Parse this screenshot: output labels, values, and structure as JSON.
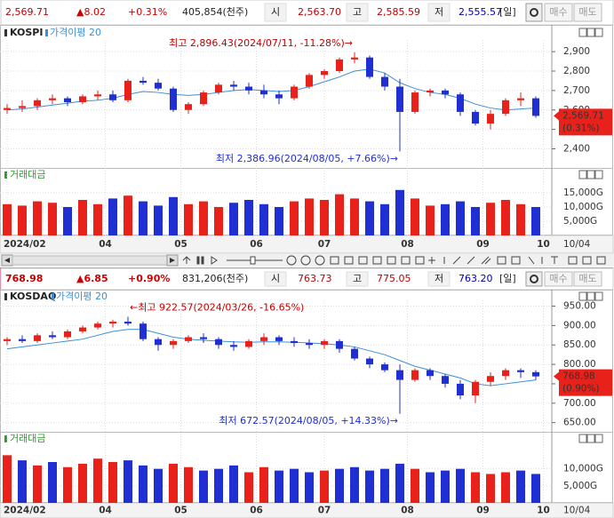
{
  "quote_bars": [
    {
      "last": "2,569.71",
      "change": "▲8.02",
      "pct": "+0.31%",
      "volume": "405,854(천주)",
      "open_label": "시",
      "open": "2,563.70",
      "high_label": "고",
      "high": "2,585.59",
      "low_label": "저",
      "low": "2,555.57",
      "period": "[일]",
      "buy": "매수",
      "sell": "매도"
    },
    {
      "last": "768.98",
      "change": "▲6.85",
      "pct": "+0.90%",
      "volume": "831,206(천주)",
      "open_label": "시",
      "open": "763.73",
      "high_label": "고",
      "high": "775.05",
      "low_label": "저",
      "low": "763.20",
      "period": "[일]",
      "buy": "매수",
      "sell": "매도"
    }
  ],
  "chart_data": [
    {
      "type": "candlestick",
      "title": "KOSPI",
      "up_color": "#e8221b",
      "down_color": "#1f2fd1",
      "ma": {
        "name": "가격이평 20",
        "color": "#3b8fd6",
        "values": [
          2600,
          2605,
          2615,
          2625,
          2635,
          2645,
          2650,
          2660,
          2680,
          2695,
          2690,
          2680,
          2675,
          2680,
          2690,
          2700,
          2705,
          2700,
          2695,
          2700,
          2720,
          2745,
          2770,
          2800,
          2810,
          2790,
          2740,
          2710,
          2690,
          2680,
          2660,
          2630,
          2610,
          2600,
          2605,
          2610
        ]
      },
      "ohlc": [
        [
          2600,
          2630,
          2580,
          2610
        ],
        [
          2610,
          2650,
          2590,
          2620
        ],
        [
          2620,
          2660,
          2600,
          2650
        ],
        [
          2650,
          2680,
          2630,
          2660
        ],
        [
          2660,
          2670,
          2620,
          2640
        ],
        [
          2640,
          2680,
          2630,
          2670
        ],
        [
          2670,
          2700,
          2650,
          2680
        ],
        [
          2680,
          2700,
          2640,
          2650
        ],
        [
          2650,
          2760,
          2640,
          2750
        ],
        [
          2750,
          2770,
          2730,
          2740
        ],
        [
          2740,
          2760,
          2700,
          2710
        ],
        [
          2710,
          2720,
          2590,
          2600
        ],
        [
          2600,
          2640,
          2580,
          2630
        ],
        [
          2630,
          2700,
          2620,
          2690
        ],
        [
          2690,
          2740,
          2680,
          2730
        ],
        [
          2730,
          2750,
          2700,
          2720
        ],
        [
          2720,
          2740,
          2680,
          2700
        ],
        [
          2700,
          2730,
          2660,
          2680
        ],
        [
          2680,
          2700,
          2630,
          2660
        ],
        [
          2660,
          2730,
          2650,
          2720
        ],
        [
          2720,
          2790,
          2710,
          2780
        ],
        [
          2780,
          2810,
          2760,
          2800
        ],
        [
          2800,
          2870,
          2790,
          2860
        ],
        [
          2860,
          2896.43,
          2840,
          2870
        ],
        [
          2870,
          2880,
          2760,
          2770
        ],
        [
          2770,
          2790,
          2700,
          2720
        ],
        [
          2720,
          2760,
          2386.96,
          2590
        ],
        [
          2590,
          2700,
          2580,
          2690
        ],
        [
          2690,
          2710,
          2670,
          2700
        ],
        [
          2700,
          2710,
          2660,
          2680
        ],
        [
          2680,
          2690,
          2570,
          2590
        ],
        [
          2590,
          2600,
          2520,
          2530
        ],
        [
          2530,
          2600,
          2500,
          2580
        ],
        [
          2580,
          2660,
          2570,
          2650
        ],
        [
          2650,
          2690,
          2620,
          2660
        ],
        [
          2660,
          2670,
          2560,
          2569.71
        ]
      ],
      "ylim": [
        2320,
        2960
      ],
      "yticks": [
        {
          "value": 2400,
          "label": "2,400"
        },
        {
          "value": 2500,
          "label": "2,500"
        },
        {
          "value": 2600,
          "label": "2,600"
        },
        {
          "value": 2700,
          "label": "2,700"
        },
        {
          "value": 2800,
          "label": "2,800"
        },
        {
          "value": 2900,
          "label": "2,900"
        }
      ],
      "high_note": "최고 2,896.43(2024/07/11, -11.28%)→",
      "low_note": "최저 2,386.96(2024/08/05, +7.66%)→",
      "last_price": "2,569.71",
      "last_change": "(0.31%)",
      "volume": {
        "title": "거래대금",
        "values": [
          11000,
          10500,
          12000,
          11500,
          10000,
          12500,
          11000,
          13000,
          14000,
          12000,
          10500,
          13500,
          11000,
          12000,
          10000,
          11500,
          12500,
          11000,
          10000,
          12000,
          13000,
          12500,
          14500,
          13000,
          12000,
          11000,
          16000,
          13000,
          10500,
          11000,
          12000,
          10000,
          11500,
          12500,
          11000,
          10000
        ],
        "ylim": [
          0,
          18750
        ],
        "yticks": [
          {
            "value": 5000,
            "label": "5,000G"
          },
          {
            "value": 10000,
            "label": "10,000G"
          },
          {
            "value": 15000,
            "label": "15,000G"
          }
        ]
      },
      "xticks": [
        {
          "value": 0,
          "label": "2024/02"
        },
        {
          "value": 6.5,
          "label": "04"
        },
        {
          "value": 11.5,
          "label": "05"
        },
        {
          "value": 16.5,
          "label": "06"
        },
        {
          "value": 21,
          "label": "07"
        },
        {
          "value": 26.5,
          "label": "08"
        },
        {
          "value": 31.5,
          "label": "09"
        },
        {
          "value": 35.5,
          "label": "10"
        }
      ],
      "date_label": "10/04"
    },
    {
      "type": "candlestick",
      "title": "KOSDAQ",
      "up_color": "#e8221b",
      "down_color": "#1f2fd1",
      "ma": {
        "name": "가격이평 20",
        "color": "#3b8fd6",
        "values": [
          840,
          845,
          850,
          855,
          860,
          865,
          875,
          885,
          890,
          890,
          880,
          870,
          865,
          862,
          860,
          858,
          857,
          858,
          858,
          857,
          855,
          853,
          850,
          845,
          835,
          825,
          810,
          795,
          785,
          775,
          765,
          750,
          745,
          750,
          755,
          760
        ]
      },
      "ohlc": [
        [
          860,
          870,
          850,
          865
        ],
        [
          865,
          875,
          855,
          860
        ],
        [
          860,
          880,
          855,
          875
        ],
        [
          875,
          885,
          865,
          870
        ],
        [
          870,
          890,
          865,
          885
        ],
        [
          885,
          900,
          880,
          895
        ],
        [
          895,
          910,
          890,
          905
        ],
        [
          905,
          915,
          895,
          910
        ],
        [
          910,
          922.57,
          900,
          905
        ],
        [
          905,
          910,
          860,
          865
        ],
        [
          865,
          870,
          835,
          850
        ],
        [
          850,
          865,
          840,
          860
        ],
        [
          860,
          875,
          855,
          870
        ],
        [
          870,
          880,
          855,
          865
        ],
        [
          865,
          870,
          840,
          850
        ],
        [
          850,
          860,
          835,
          845
        ],
        [
          845,
          865,
          840,
          860
        ],
        [
          860,
          880,
          850,
          870
        ],
        [
          870,
          875,
          850,
          860
        ],
        [
          860,
          870,
          845,
          855
        ],
        [
          855,
          865,
          840,
          850
        ],
        [
          850,
          865,
          840,
          860
        ],
        [
          860,
          865,
          830,
          840
        ],
        [
          840,
          845,
          810,
          815
        ],
        [
          815,
          820,
          790,
          800
        ],
        [
          800,
          805,
          780,
          785
        ],
        [
          785,
          800,
          672.57,
          760
        ],
        [
          760,
          790,
          755,
          785
        ],
        [
          785,
          790,
          760,
          770
        ],
        [
          770,
          775,
          740,
          750
        ],
        [
          750,
          760,
          710,
          720
        ],
        [
          720,
          760,
          700,
          755
        ],
        [
          755,
          780,
          745,
          770
        ],
        [
          770,
          790,
          760,
          785
        ],
        [
          785,
          790,
          765,
          780
        ],
        [
          780,
          785,
          760,
          768.98
        ]
      ],
      "ylim": [
        640,
        965
      ],
      "yticks": [
        {
          "value": 650,
          "label": "650.00"
        },
        {
          "value": 700,
          "label": "700.00"
        },
        {
          "value": 750,
          "label": "750.00"
        },
        {
          "value": 800,
          "label": "800.00"
        },
        {
          "value": 850,
          "label": "850.00"
        },
        {
          "value": 900,
          "label": "900.00"
        },
        {
          "value": 950,
          "label": "950.00"
        }
      ],
      "high_note": "←최고 922.57(2024/03/26, -16.65%)",
      "low_note": "최저 672.57(2024/08/05, +14.33%)→",
      "last_price": "768.98",
      "last_change": "(0.90%)",
      "volume": {
        "title": "거래대금",
        "values": [
          14000,
          12500,
          11000,
          12000,
          10500,
          11500,
          13000,
          12000,
          12500,
          11000,
          10000,
          11500,
          10500,
          9500,
          10000,
          11000,
          9000,
          10500,
          9500,
          10000,
          9000,
          9500,
          10000,
          10500,
          9500,
          10000,
          11500,
          10000,
          9000,
          9500,
          10000,
          9000,
          8500,
          9000,
          9500,
          8500
        ],
        "ylim": [
          0,
          16700
        ],
        "yticks": [
          {
            "value": 5000,
            "label": "5,000G"
          },
          {
            "value": 10000,
            "label": "10,000G"
          }
        ]
      },
      "xticks": [
        {
          "value": 0,
          "label": "2024/02"
        },
        {
          "value": 6.5,
          "label": "04"
        },
        {
          "value": 11.5,
          "label": "05"
        },
        {
          "value": 16.5,
          "label": "06"
        },
        {
          "value": 21,
          "label": "07"
        },
        {
          "value": 26.5,
          "label": "08"
        },
        {
          "value": 31.5,
          "label": "09"
        },
        {
          "value": 35.5,
          "label": "10"
        }
      ],
      "date_label": "10/04"
    }
  ]
}
